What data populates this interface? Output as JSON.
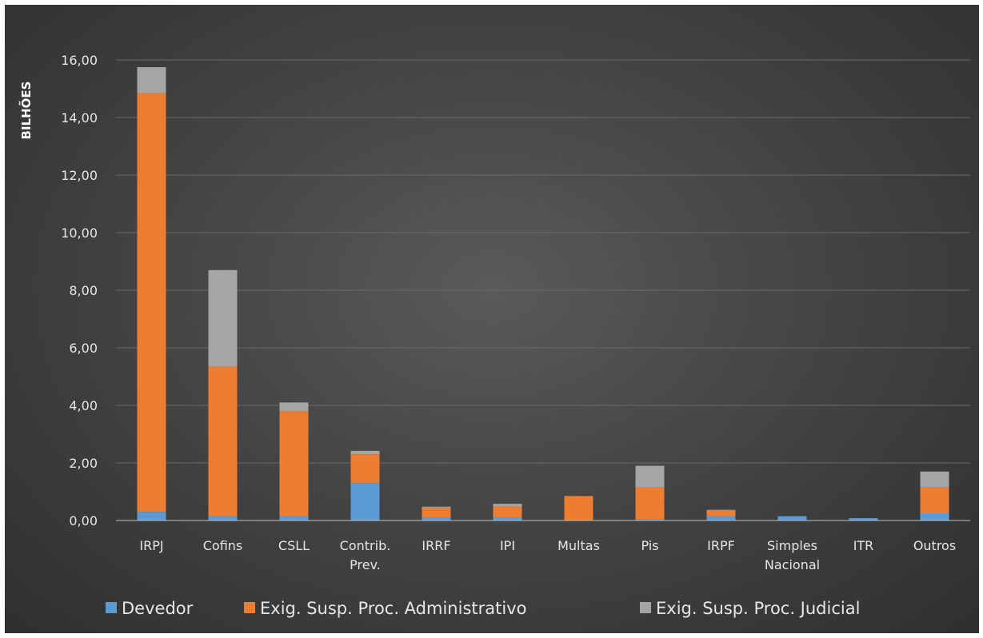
{
  "chart_data": {
    "type": "bar",
    "stacked": true,
    "title": "",
    "xlabel": "",
    "ylabel": "BILHÕES",
    "ylim": [
      0,
      16
    ],
    "yticks": [
      "0,00",
      "2,00",
      "4,00",
      "6,00",
      "8,00",
      "10,00",
      "12,00",
      "14,00",
      "16,00"
    ],
    "grid": true,
    "legend_position": "bottom",
    "categories": [
      [
        "IRPJ"
      ],
      [
        "Cofins"
      ],
      [
        "CSLL"
      ],
      [
        "Contrib.",
        "Prev."
      ],
      [
        "IRRF"
      ],
      [
        "IPI"
      ],
      [
        "Multas"
      ],
      [
        "Pis"
      ],
      [
        "IRPF"
      ],
      [
        "Simples",
        "Nacional"
      ],
      [
        "ITR"
      ],
      [
        "Outros"
      ]
    ],
    "series": [
      {
        "name": "Devedor",
        "color": "#5b9bd5",
        "values": [
          0.3,
          0.15,
          0.15,
          1.3,
          0.1,
          0.1,
          0.0,
          0.05,
          0.15,
          0.15,
          0.08,
          0.25
        ]
      },
      {
        "name": "Exig. Susp. Proc. Administrativo",
        "color": "#ed7d31",
        "values": [
          14.55,
          5.2,
          3.65,
          1.0,
          0.35,
          0.38,
          0.85,
          1.1,
          0.2,
          0.0,
          0.0,
          0.9
        ]
      },
      {
        "name": "Exig. Susp. Proc. Judicial",
        "color": "#a5a5a5",
        "values": [
          0.9,
          3.35,
          0.3,
          0.12,
          0.03,
          0.1,
          0.0,
          0.75,
          0.02,
          0.0,
          0.0,
          0.55
        ]
      }
    ]
  }
}
